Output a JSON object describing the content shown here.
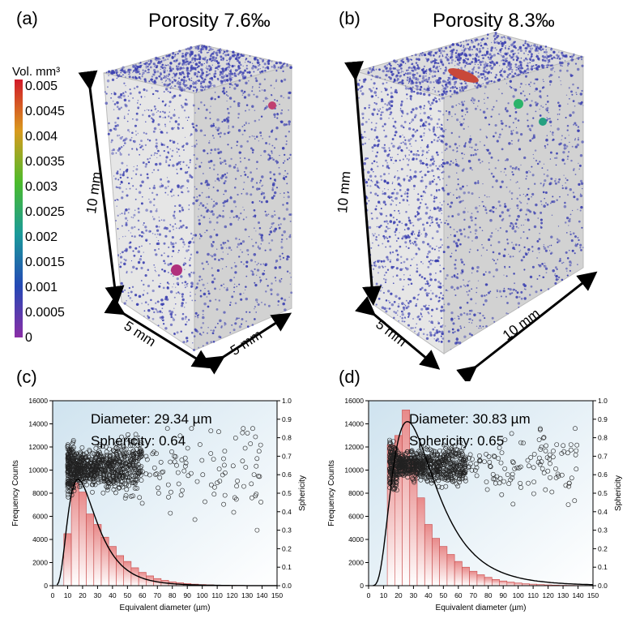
{
  "panels": {
    "a": {
      "label": "(a)",
      "title": "Porosity 7.6‰",
      "height_label": "10 mm",
      "width_label": "5 mm",
      "depth_label": "5 mm"
    },
    "b": {
      "label": "(b)",
      "title": "Porosity 8.3‰",
      "height_label": "10 mm",
      "width_label": "5 mm",
      "depth_label": "10 mm"
    },
    "c": {
      "label": "(c)"
    },
    "d": {
      "label": "(d)"
    }
  },
  "colorbar": {
    "title": "Vol. mm³",
    "ticks": [
      "0.005",
      "0.0045",
      "0.004",
      "0.0035",
      "0.003",
      "0.0025",
      "0.002",
      "0.0015",
      "0.001",
      "0.0005",
      "0"
    ],
    "colors": [
      "#d11a2a",
      "#e0561b",
      "#d99a1e",
      "#a6b51c",
      "#4bbb2c",
      "#1fb06a",
      "#1a9a9a",
      "#1f74b8",
      "#2449b5",
      "#3b1fa8",
      "#8a2ea6"
    ]
  },
  "colors": {
    "pore_blue": "#3a3fb0",
    "bar_fill": "#e88a8a",
    "bar_stroke": "#c84c4c",
    "fit_line": "#000000"
  },
  "chart_data": [
    {
      "type": "bar",
      "id": "c",
      "annotation_diameter": "Diameter: 29.34 µm",
      "annotation_sphericity": "Sphericity: 0.64",
      "xlabel": "Equivalent diameter (µm)",
      "ylabel": "Frequency Counts",
      "y2label": "Sphericity",
      "xlim": [
        0,
        150
      ],
      "ylim": [
        0,
        16000
      ],
      "y2lim": [
        0,
        1.0
      ],
      "xticks": [
        "0",
        "10",
        "20",
        "30",
        "40",
        "50",
        "60",
        "70",
        "80",
        "90",
        "100",
        "110",
        "120",
        "130",
        "140",
        "150"
      ],
      "yticks": [
        "0",
        "2000",
        "4000",
        "6000",
        "8000",
        "10000",
        "12000",
        "14000",
        "16000"
      ],
      "y2ticks": [
        "0.0",
        "0.1",
        "0.2",
        "0.3",
        "0.4",
        "0.5",
        "0.6",
        "0.7",
        "0.8",
        "0.9",
        "1.0"
      ],
      "bin_width": 5,
      "bins": [
        10,
        15,
        20,
        25,
        30,
        35,
        40,
        45,
        50,
        55,
        60,
        65,
        70,
        75,
        80,
        85,
        90,
        95,
        100,
        105,
        110,
        115,
        120,
        125,
        130,
        135,
        140,
        145
      ],
      "values": [
        4500,
        8900,
        8100,
        6200,
        5300,
        4200,
        3400,
        2600,
        2100,
        1550,
        1150,
        850,
        620,
        460,
        340,
        250,
        180,
        130,
        95,
        70,
        50,
        38,
        28,
        20,
        15,
        11,
        8,
        6
      ],
      "fit_peak_x": 17,
      "fit_peak_y": 9200,
      "scatter_band": {
        "x_min": 10,
        "x_dense_max": 60,
        "x_sparse_max": 140,
        "sphericity_center": 0.64,
        "sphericity_spread": 0.07
      }
    },
    {
      "type": "bar",
      "id": "d",
      "annotation_diameter": "Diameter: 30.83 µm",
      "annotation_sphericity": "Sphericity: 0.65",
      "xlabel": "Equivalent diameter (µm)",
      "ylabel": "Frequency Counts",
      "y2label": "Sphericity",
      "xlim": [
        0,
        150
      ],
      "ylim": [
        0,
        16000
      ],
      "y2lim": [
        0,
        1.0
      ],
      "xticks": [
        "0",
        "10",
        "20",
        "30",
        "40",
        "50",
        "60",
        "70",
        "80",
        "90",
        "100",
        "110",
        "120",
        "130",
        "140",
        "150"
      ],
      "yticks": [
        "0",
        "2000",
        "4000",
        "6000",
        "8000",
        "10000",
        "12000",
        "14000",
        "16000"
      ],
      "y2ticks": [
        "0.0",
        "0.1",
        "0.2",
        "0.3",
        "0.4",
        "0.5",
        "0.6",
        "0.7",
        "0.8",
        "0.9",
        "1.0"
      ],
      "bin_width": 5,
      "bins": [
        15,
        20,
        25,
        30,
        35,
        40,
        45,
        50,
        55,
        60,
        65,
        70,
        75,
        80,
        85,
        90,
        95,
        100,
        105,
        110,
        115,
        120,
        125,
        130,
        135,
        140,
        145
      ],
      "values": [
        12200,
        13000,
        15200,
        10700,
        7600,
        5300,
        4100,
        3400,
        2700,
        2100,
        1600,
        1250,
        950,
        720,
        540,
        410,
        310,
        230,
        170,
        130,
        95,
        70,
        50,
        38,
        28,
        20,
        15
      ],
      "fit_peak_x": 26,
      "fit_peak_y": 14200,
      "scatter_band": {
        "x_min": 14,
        "x_dense_max": 65,
        "x_sparse_max": 140,
        "sphericity_center": 0.65,
        "sphericity_spread": 0.05
      }
    }
  ]
}
